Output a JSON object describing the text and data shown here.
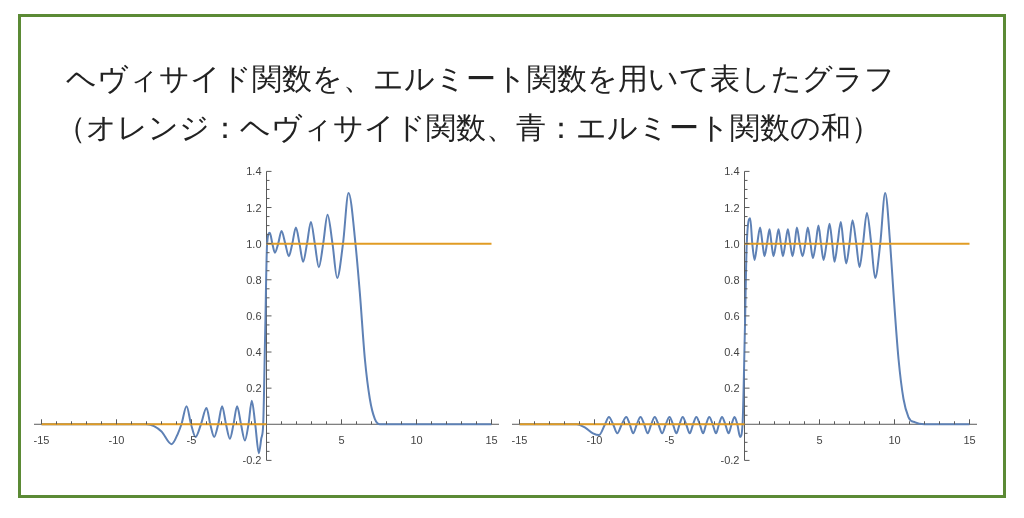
{
  "chart_data": [
    {
      "type": "line",
      "title": "ヘヴィサイド関数を、エルミート関数を用いて表したグラフ",
      "subtitle": "（オレンジ：ヘヴィサイド関数、青：エルミート関数の和）",
      "xlim": [
        -15.5,
        15.5
      ],
      "ylim": [
        -0.2,
        1.4
      ],
      "xticks": [
        -15,
        {
          "value": -14,
          "label": null
        },
        {
          "value": -13,
          "label": null
        },
        {
          "value": -12,
          "label": null
        },
        {
          "value": -11,
          "label": null
        },
        -10,
        {
          "value": -9,
          "label": null
        },
        {
          "value": -8,
          "label": null
        },
        {
          "value": -7,
          "label": null
        },
        {
          "value": -6,
          "label": null
        },
        -5,
        {
          "value": -4,
          "label": null
        },
        {
          "value": -3,
          "label": null
        },
        {
          "value": -2,
          "label": null
        },
        {
          "value": -1,
          "label": null
        },
        {
          "value": 1,
          "label": null
        },
        {
          "value": 2,
          "label": null
        },
        {
          "value": 3,
          "label": null
        },
        {
          "value": 4,
          "label": null
        },
        5,
        {
          "value": 6,
          "label": null
        },
        {
          "value": 7,
          "label": null
        },
        {
          "value": 8,
          "label": null
        },
        {
          "value": 9,
          "label": null
        },
        10,
        {
          "value": 11,
          "label": null
        },
        {
          "value": 12,
          "label": null
        },
        {
          "value": 13,
          "label": null
        },
        {
          "value": 14,
          "label": null
        },
        15
      ],
      "yticks": [
        -0.2,
        {
          "value": -0.15,
          "label": null
        },
        {
          "value": -0.1,
          "label": null
        },
        {
          "value": -0.05,
          "label": null
        },
        {
          "value": 0.05,
          "label": null
        },
        {
          "value": 0.1,
          "label": null
        },
        {
          "value": 0.15,
          "label": null
        },
        0.2,
        {
          "value": 0.25,
          "label": null
        },
        {
          "value": 0.3,
          "label": null
        },
        {
          "value": 0.35,
          "label": null
        },
        0.4,
        {
          "value": 0.45,
          "label": null
        },
        {
          "value": 0.5,
          "label": null
        },
        {
          "value": 0.55,
          "label": null
        },
        0.6,
        {
          "value": 0.65,
          "label": null
        },
        {
          "value": 0.7,
          "label": null
        },
        {
          "value": 0.75,
          "label": null
        },
        0.8,
        {
          "value": 0.85,
          "label": null
        },
        {
          "value": 0.9,
          "label": null
        },
        {
          "value": 0.95,
          "label": null
        },
        {
          "value": 1,
          "label": "1.0"
        },
        {
          "value": 1.05,
          "label": null
        },
        {
          "value": 1.1,
          "label": null
        },
        {
          "value": 1.15,
          "label": null
        },
        1.2,
        {
          "value": 1.25,
          "label": null
        },
        {
          "value": 1.3,
          "label": null
        },
        {
          "value": 1.35,
          "label": null
        },
        1.4
      ],
      "series": [
        {
          "color": "#5e81b5",
          "x": [
            -15,
            -8,
            -7.5,
            -7,
            -6.33,
            -5.9,
            -5.67,
            -5.33,
            -5.03,
            -4.73,
            -4.37,
            -4,
            -3.75,
            -3.49,
            -3.22,
            -2.96,
            -2.7,
            -2.44,
            -2.2,
            -1.96,
            -1.7,
            -1.44,
            -1.2,
            -0.98,
            -0.75,
            -0.51,
            -0.35,
            -0.22,
            -0.09,
            0.04,
            0.22,
            0.39,
            0.56,
            0.78,
            1,
            1.25,
            1.49,
            1.72,
            1.96,
            2.2,
            2.44,
            2.7,
            2.96,
            3.22,
            3.49,
            3.78,
            4.07,
            4.4,
            4.71,
            5.1,
            5.47,
            5.93,
            6.22,
            6.56,
            6.89,
            7.22,
            7.56,
            8,
            15
          ],
          "values": [
            0,
            0,
            -0.01,
            -0.04,
            -0.11,
            -0.05,
            0,
            0.1,
            0,
            -0.07,
            0,
            0.09,
            0,
            -0.07,
            0,
            0.1,
            0,
            -0.08,
            0,
            0.1,
            0,
            -0.09,
            0,
            0.13,
            0,
            -0.16,
            -0.08,
            0,
            0.5,
            1,
            1.06,
            1,
            0.95,
            1,
            1.07,
            1,
            0.93,
            1,
            1.09,
            1,
            0.9,
            1,
            1.12,
            1,
            0.87,
            1,
            1.16,
            1,
            0.81,
            1,
            1.28,
            1,
            0.73,
            0.36,
            0.14,
            0.03,
            0,
            0,
            0
          ]
        },
        {
          "color": "#e19c24",
          "x": [
            -15,
            0
          ],
          "values": [
            0,
            0
          ]
        },
        {
          "color": "#e19c24",
          "x": [
            0,
            15
          ],
          "values": [
            1,
            1
          ]
        }
      ]
    },
    {
      "type": "line",
      "xlim": [
        -15.5,
        15.5
      ],
      "ylim": [
        -0.2,
        1.4
      ],
      "xticks": [
        -15,
        {
          "value": -14,
          "label": null
        },
        {
          "value": -13,
          "label": null
        },
        {
          "value": -12,
          "label": null
        },
        {
          "value": -11,
          "label": null
        },
        -10,
        {
          "value": -9,
          "label": null
        },
        {
          "value": -8,
          "label": null
        },
        {
          "value": -7,
          "label": null
        },
        {
          "value": -6,
          "label": null
        },
        -5,
        {
          "value": -4,
          "label": null
        },
        {
          "value": -3,
          "label": null
        },
        {
          "value": -2,
          "label": null
        },
        {
          "value": -1,
          "label": null
        },
        {
          "value": 1,
          "label": null
        },
        {
          "value": 2,
          "label": null
        },
        {
          "value": 3,
          "label": null
        },
        {
          "value": 4,
          "label": null
        },
        5,
        {
          "value": 6,
          "label": null
        },
        {
          "value": 7,
          "label": null
        },
        {
          "value": 8,
          "label": null
        },
        {
          "value": 9,
          "label": null
        },
        10,
        {
          "value": 11,
          "label": null
        },
        {
          "value": 12,
          "label": null
        },
        {
          "value": 13,
          "label": null
        },
        {
          "value": 14,
          "label": null
        },
        15
      ],
      "yticks": [
        -0.2,
        {
          "value": -0.15,
          "label": null
        },
        {
          "value": -0.1,
          "label": null
        },
        {
          "value": -0.05,
          "label": null
        },
        {
          "value": 0.05,
          "label": null
        },
        {
          "value": 0.1,
          "label": null
        },
        {
          "value": 0.15,
          "label": null
        },
        0.2,
        {
          "value": 0.25,
          "label": null
        },
        {
          "value": 0.3,
          "label": null
        },
        {
          "value": 0.35,
          "label": null
        },
        0.4,
        {
          "value": 0.45,
          "label": null
        },
        {
          "value": 0.5,
          "label": null
        },
        {
          "value": 0.55,
          "label": null
        },
        0.6,
        {
          "value": 0.65,
          "label": null
        },
        {
          "value": 0.7,
          "label": null
        },
        {
          "value": 0.75,
          "label": null
        },
        0.8,
        {
          "value": 0.85,
          "label": null
        },
        {
          "value": 0.9,
          "label": null
        },
        {
          "value": 0.95,
          "label": null
        },
        {
          "value": 1,
          "label": "1.0"
        },
        {
          "value": 1.05,
          "label": null
        },
        {
          "value": 1.1,
          "label": null
        },
        {
          "value": 1.15,
          "label": null
        },
        1.2,
        {
          "value": 1.25,
          "label": null
        },
        {
          "value": 1.3,
          "label": null
        },
        {
          "value": 1.35,
          "label": null
        },
        1.4
      ],
      "series": [
        {
          "color": "#5e81b5",
          "x": [
            -15,
            -11.2,
            -10.6,
            -10.1,
            -9.7,
            -9.3,
            -9.04,
            -8.76,
            -8.48,
            -8.18,
            -7.88,
            -7.65,
            -7.42,
            -7.18,
            -6.93,
            -6.69,
            -6.45,
            -6.22,
            -5.98,
            -5.74,
            -5.49,
            -5.25,
            -5,
            -4.77,
            -4.54,
            -4.33,
            -4.12,
            -3.89,
            -3.65,
            -3.43,
            -3.21,
            -2.98,
            -2.76,
            -2.56,
            -2.35,
            -2.12,
            -1.9,
            -1.7,
            -1.5,
            -1.28,
            -1.06,
            -0.86,
            -0.66,
            -0.48,
            -0.29,
            -0.13,
            0.02,
            0.15,
            0.38,
            0.52,
            0.67,
            0.85,
            1.04,
            1.2,
            1.33,
            1.5,
            1.67,
            1.8,
            1.93,
            2.1,
            2.27,
            2.42,
            2.56,
            2.72,
            2.89,
            3.05,
            3.2,
            3.35,
            3.49,
            3.68,
            3.87,
            4.05,
            4.22,
            4.4,
            4.56,
            4.75,
            4.93,
            5.1,
            5.27,
            5.47,
            5.67,
            5.85,
            6,
            6.2,
            6.42,
            6.6,
            6.78,
            7,
            7.2,
            7.45,
            7.67,
            7.9,
            8.16,
            8.45,
            8.71,
            9.05,
            9.38,
            9.71,
            9.93,
            10.27,
            10.6,
            10.93,
            11.38,
            12,
            15
          ],
          "values": [
            0,
            0,
            -0.02,
            -0.05,
            -0.06,
            0,
            0.04,
            0,
            -0.05,
            0,
            0.04,
            0,
            -0.05,
            0,
            0.04,
            0,
            -0.05,
            0,
            0.04,
            0,
            -0.05,
            0,
            0.04,
            0,
            -0.05,
            0,
            0.04,
            0,
            -0.05,
            0,
            0.04,
            0,
            -0.05,
            0,
            0.04,
            0,
            -0.05,
            0,
            0.04,
            0,
            -0.05,
            0,
            0.04,
            0,
            -0.07,
            0,
            0.5,
            1,
            1.14,
            1,
            0.91,
            1,
            1.09,
            1,
            0.93,
            1,
            1.08,
            1,
            0.93,
            1,
            1.08,
            1,
            0.93,
            1,
            1.08,
            1,
            0.93,
            1,
            1.09,
            1,
            0.93,
            1,
            1.09,
            1,
            0.92,
            1,
            1.1,
            1,
            0.91,
            1,
            1.11,
            1,
            0.9,
            1,
            1.12,
            1,
            0.89,
            1,
            1.13,
            1,
            0.87,
            1,
            1.17,
            1,
            0.81,
            1,
            1.28,
            1,
            0.73,
            0.36,
            0.14,
            0.04,
            0.01,
            0,
            0
          ]
        },
        {
          "color": "#e19c24",
          "x": [
            -15,
            0
          ],
          "values": [
            0,
            0
          ]
        },
        {
          "color": "#e19c24",
          "x": [
            0,
            15
          ],
          "values": [
            1,
            1
          ]
        }
      ]
    }
  ]
}
